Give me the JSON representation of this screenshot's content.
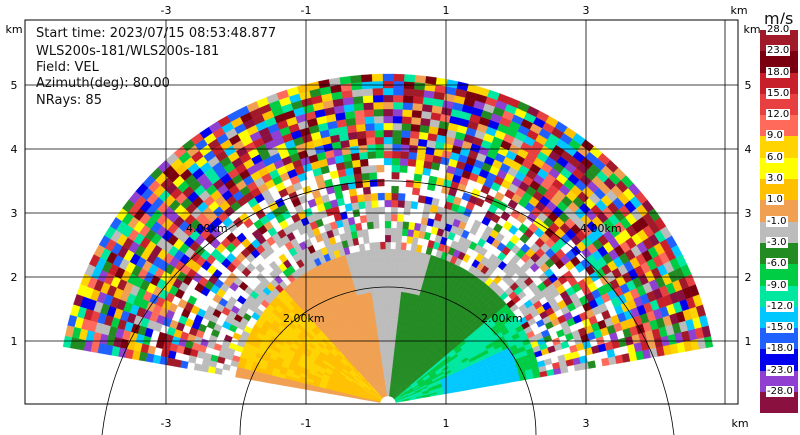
{
  "info": {
    "start_time": "Start time: 2023/07/15 08:53:48.877",
    "site": "WLS200s-181/WLS200s-181",
    "field": "Field: VEL",
    "azimuth": "Azimuth(deg): 80.00",
    "nrays": "NRays: 85"
  },
  "axes": {
    "x_ticks": [
      "-3",
      "-1",
      "1",
      "3"
    ],
    "y_ticks": [
      "1",
      "2",
      "3",
      "4",
      "5"
    ],
    "unit_top_left": "km",
    "unit_top_right": "km",
    "unit_right_top": "km",
    "unit_bottom_right": "km"
  },
  "range_rings": [
    "2.00km",
    "2.00km",
    "4.00km",
    "4.00km"
  ],
  "colorbar": {
    "unit": "m/s",
    "levels": [
      {
        "label": "28.0",
        "color": "#a01a2a"
      },
      {
        "label": "23.0",
        "color": "#7a0010"
      },
      {
        "label": "18.0",
        "color": "#c8202a"
      },
      {
        "label": "15.0",
        "color": "#e84040"
      },
      {
        "label": "12.0",
        "color": "#ff6a5a"
      },
      {
        "label": "9.0",
        "color": "#ffd400"
      },
      {
        "label": "6.0",
        "color": "#ffff00"
      },
      {
        "label": "3.0",
        "color": "#ffc000"
      },
      {
        "label": "1.0",
        "color": "#f0a050"
      },
      {
        "label": "-1.0",
        "color": "#bcbcbc"
      },
      {
        "label": "-3.0",
        "color": "#228b22"
      },
      {
        "label": "-6.0",
        "color": "#00cc44"
      },
      {
        "label": "-9.0",
        "color": "#00e8a0"
      },
      {
        "label": "-12.0",
        "color": "#00c8ff"
      },
      {
        "label": "-15.0",
        "color": "#2060ff"
      },
      {
        "label": "-18.0",
        "color": "#0000ee"
      },
      {
        "label": "-23.0",
        "color": "#9040d0"
      },
      {
        "label": "-28.0",
        "color": "#8a1040"
      }
    ]
  }
}
